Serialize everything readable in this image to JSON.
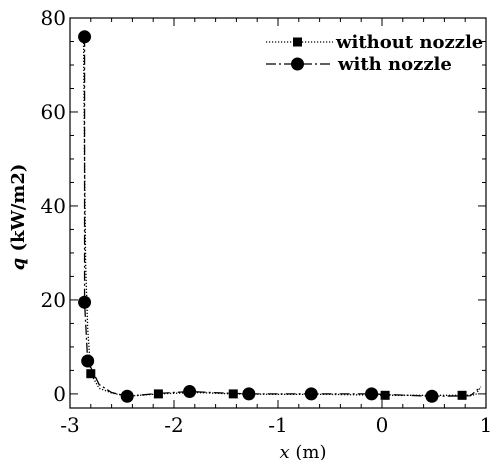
{
  "chart_data": {
    "type": "line",
    "title": "",
    "xlabel": {
      "var": "x",
      "unit": " (m)"
    },
    "ylabel": {
      "var": "q",
      "unit": " (kW/m2)"
    },
    "xlim": [
      -3,
      1
    ],
    "ylim": [
      -3,
      80
    ],
    "x_ticks": [
      -3,
      -2,
      -1,
      0,
      1
    ],
    "x_tick_labels": [
      "-3",
      "-2",
      "-1",
      "0",
      "1"
    ],
    "y_ticks": [
      0,
      20,
      40,
      60,
      80
    ],
    "y_tick_labels": [
      "0",
      "20",
      "40",
      "60",
      "80"
    ],
    "grid": false,
    "legend_position": "top-right",
    "series": [
      {
        "name": "without nozzle",
        "line_style": "dotted",
        "marker": "square",
        "color": "#000000",
        "markers": [
          {
            "x": -2.8,
            "y": 4.3
          },
          {
            "x": -2.15,
            "y": 0.0
          },
          {
            "x": -1.43,
            "y": 0.0
          },
          {
            "x": 0.03,
            "y": -0.3
          },
          {
            "x": 0.77,
            "y": -0.3
          }
        ],
        "line": [
          {
            "x": -2.87,
            "y": 76
          },
          {
            "x": -2.86,
            "y": 50
          },
          {
            "x": -2.85,
            "y": 28
          },
          {
            "x": -2.83,
            "y": 14
          },
          {
            "x": -2.8,
            "y": 4.3
          },
          {
            "x": -2.72,
            "y": 1.2
          },
          {
            "x": -2.6,
            "y": 0.2
          },
          {
            "x": -2.45,
            "y": -0.5
          },
          {
            "x": -2.15,
            "y": 0.0
          },
          {
            "x": -1.8,
            "y": 0.3
          },
          {
            "x": -1.43,
            "y": 0.0
          },
          {
            "x": -1.0,
            "y": -0.1
          },
          {
            "x": -0.5,
            "y": -0.1
          },
          {
            "x": 0.03,
            "y": -0.3
          },
          {
            "x": 0.4,
            "y": -0.3
          },
          {
            "x": 0.77,
            "y": -0.3
          },
          {
            "x": 0.9,
            "y": -0.2
          },
          {
            "x": 0.95,
            "y": 1.5
          }
        ]
      },
      {
        "name": "with nozzle",
        "line_style": "dashdot",
        "marker": "circle",
        "color": "#000000",
        "markers": [
          {
            "x": -2.86,
            "y": 76
          },
          {
            "x": -2.86,
            "y": 19.5
          },
          {
            "x": -2.83,
            "y": 7.0
          },
          {
            "x": -2.45,
            "y": -0.5
          },
          {
            "x": -1.85,
            "y": 0.5
          },
          {
            "x": -1.28,
            "y": 0.0
          },
          {
            "x": -0.68,
            "y": 0.0
          },
          {
            "x": -0.1,
            "y": 0.0
          },
          {
            "x": 0.48,
            "y": -0.5
          }
        ],
        "line": [
          {
            "x": -2.86,
            "y": 76
          },
          {
            "x": -2.86,
            "y": 19.5
          },
          {
            "x": -2.83,
            "y": 7.0
          },
          {
            "x": -2.72,
            "y": 2.0
          },
          {
            "x": -2.6,
            "y": 0.3
          },
          {
            "x": -2.45,
            "y": -0.5
          },
          {
            "x": -2.15,
            "y": 0.1
          },
          {
            "x": -1.85,
            "y": 0.5
          },
          {
            "x": -1.55,
            "y": 0.2
          },
          {
            "x": -1.28,
            "y": 0.0
          },
          {
            "x": -0.68,
            "y": 0.0
          },
          {
            "x": -0.1,
            "y": 0.0
          },
          {
            "x": 0.48,
            "y": -0.5
          },
          {
            "x": 0.85,
            "y": -0.4
          },
          {
            "x": 0.95,
            "y": 1.5
          }
        ]
      }
    ]
  }
}
